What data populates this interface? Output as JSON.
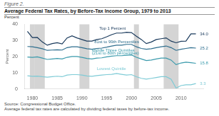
{
  "chart_data": {
    "type": "line",
    "figure_label": "Figure 2.",
    "title": "Average Federal Tax Rates, by Before-Tax Income Group, 1979 to 2013",
    "ylabel": "Percent",
    "source": "Source: Congressional Budget Office.",
    "note": "Average federal tax rates are calculated by dividing federal taxes by before-tax income.",
    "x": [
      1979,
      1980,
      1981,
      1982,
      1983,
      1984,
      1985,
      1986,
      1987,
      1988,
      1989,
      1990,
      1991,
      1992,
      1993,
      1994,
      1995,
      1996,
      1997,
      1998,
      1999,
      2000,
      2001,
      2002,
      2003,
      2004,
      2005,
      2006,
      2007,
      2008,
      2009,
      2010,
      2011,
      2012,
      2013
    ],
    "xlim": [
      1978.5,
      2014.5
    ],
    "xticks": [
      1980,
      1985,
      1990,
      1995,
      2000,
      2005,
      2010
    ],
    "ylim": [
      0,
      40
    ],
    "yticks": [
      0,
      10,
      20,
      30,
      40
    ],
    "grid": false,
    "recession_bands": [
      [
        1980,
        1980
      ],
      [
        1981,
        1982
      ],
      [
        1990,
        1991
      ],
      [
        2001,
        2001
      ],
      [
        2007,
        2009
      ]
    ],
    "recession_color": "#d4d4d4",
    "series": [
      {
        "name": "Lowest Quintile",
        "color": "#7ecbd6",
        "values": [
          8.1,
          7.8,
          7.9,
          7.5,
          7.2,
          7.5,
          7.8,
          7.5,
          8.5,
          8.8,
          8.8,
          8.5,
          8.0,
          7.8,
          8.2,
          8.5,
          8.8,
          9.0,
          9.5,
          9.0,
          8.5,
          8.8,
          7.5,
          6.5,
          6.0,
          6.5,
          7.0,
          7.5,
          7.5,
          6.0,
          0.5,
          2.0,
          2.5,
          2.5,
          3.3
        ]
      },
      {
        "name": "Middle Three Quintiles",
        "color": "#3a9aac",
        "values": [
          19.7,
          19.5,
          19.8,
          19.0,
          18.2,
          18.5,
          18.8,
          18.5,
          19.5,
          20.0,
          20.0,
          19.5,
          18.8,
          18.5,
          19.0,
          19.2,
          19.8,
          20.2,
          20.5,
          20.5,
          20.8,
          21.0,
          19.5,
          18.5,
          17.5,
          17.8,
          18.5,
          19.0,
          19.0,
          17.8,
          15.0,
          16.0,
          16.5,
          16.2,
          15.8
        ]
      },
      {
        "name": "81st to 99th Percentiles",
        "color": "#2e6e8e",
        "values": [
          26.2,
          26.0,
          25.5,
          24.8,
          23.8,
          24.0,
          24.2,
          24.0,
          25.5,
          26.0,
          26.0,
          25.5,
          24.8,
          24.5,
          25.0,
          25.2,
          25.8,
          26.5,
          27.0,
          27.0,
          27.5,
          27.5,
          26.0,
          25.0,
          24.5,
          24.8,
          25.5,
          26.0,
          26.5,
          25.5,
          23.8,
          24.5,
          25.0,
          25.5,
          25.2
        ]
      },
      {
        "name": "Top 1 Percent",
        "color": "#1a3a5c",
        "values": [
          35.5,
          31.7,
          31.8,
          29.0,
          27.0,
          28.0,
          28.5,
          27.8,
          31.5,
          32.8,
          31.5,
          30.5,
          29.5,
          29.5,
          30.5,
          31.0,
          32.2,
          33.5,
          34.5,
          34.5,
          35.0,
          34.8,
          32.5,
          30.5,
          28.0,
          29.0,
          30.5,
          31.0,
          31.5,
          29.5,
          28.5,
          29.4,
          29.5,
          34.0,
          34.0
        ]
      }
    ],
    "annotations": [
      {
        "text": "Top 1 Percent",
        "x": 1993.5,
        "y": 37.2,
        "series": "Top 1 Percent"
      },
      {
        "text": "81st to 99th Percentiles",
        "x": 1992.5,
        "y": 28.8,
        "series": "81st to 99th Percentiles"
      },
      {
        "text": "Middle Three Quintiles",
        "x": 1992.0,
        "y": 23.8,
        "series": "Middle Three Quintiles"
      },
      {
        "text": "(21st to 80th percentiles)",
        "x": 1992.0,
        "y": 22.2,
        "series": "Middle Three Quintiles"
      },
      {
        "text": "Lowest Quintile",
        "x": 1993.0,
        "y": 12.5,
        "series": "Lowest Quintile"
      },
      {
        "text": "34.0",
        "x": 2013.8,
        "y": 34.0,
        "series": "Top 1 Percent"
      },
      {
        "text": "25.2",
        "x": 2013.8,
        "y": 25.2,
        "series": "81st to 99th Percentiles"
      },
      {
        "text": "15.8",
        "x": 2013.8,
        "y": 15.8,
        "series": "Middle Three Quintiles"
      },
      {
        "text": "3.3",
        "x": 2013.8,
        "y": 3.3,
        "series": "Lowest Quintile"
      }
    ]
  }
}
